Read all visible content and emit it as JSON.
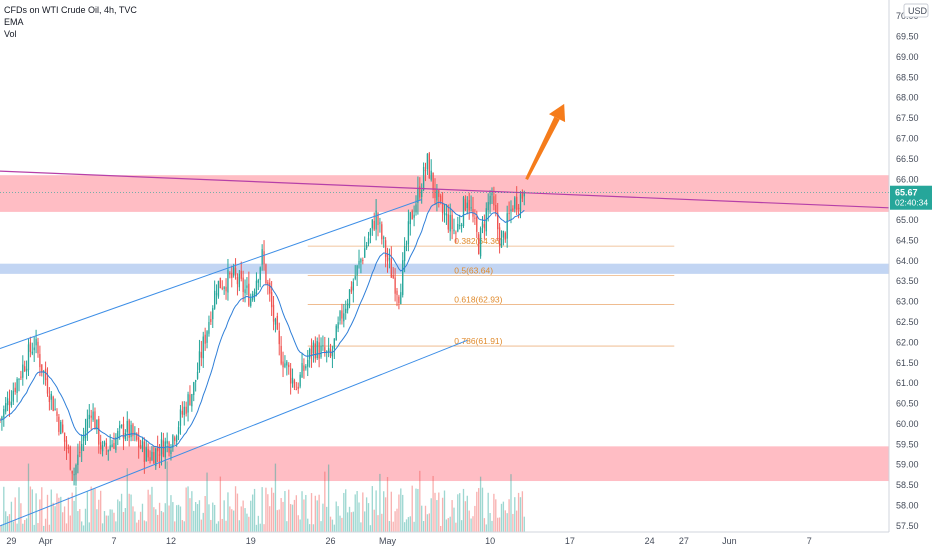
{
  "legend": {
    "title": "CFDs on WTI Crude Oil, 4h, TVC",
    "indicator1": "EMA",
    "indicator2": "Vol"
  },
  "currency": "USD",
  "colors": {
    "up": "#26a69a",
    "down": "#ef5350",
    "ema": "#2f7fd8",
    "channel": "#3d8ee6",
    "resistance": "#ff7b8a",
    "support": "#8fb2ea",
    "trendline": "#b640a8",
    "fib": "#e8a060",
    "arrow": "#f57c1b",
    "price_tag": "#26a69a"
  },
  "price_tag": {
    "price": "65.67",
    "countdown": "02:40:34",
    "value": 65.67
  },
  "chart_data": {
    "type": "candlestick",
    "ylim": [
      57.35,
      70.2
    ],
    "y_ticks": [
      57.5,
      58.0,
      58.5,
      59.0,
      59.5,
      60.0,
      60.5,
      61.0,
      61.5,
      62.0,
      62.5,
      63.0,
      63.5,
      64.0,
      64.5,
      65.0,
      65.5,
      66.0,
      66.5,
      67.0,
      67.5,
      68.0,
      68.5,
      69.0,
      69.5,
      70.0
    ],
    "y_tick_labels": [
      "57.50",
      "58.00",
      "58.50",
      "59.00",
      "59.50",
      "60.00",
      "60.50",
      "61.00",
      "61.50",
      "62.00",
      "62.50",
      "63.00",
      "63.50",
      "64.00",
      "64.50",
      "65.00",
      "65.50",
      "66.00",
      "66.50",
      "67.00",
      "67.50",
      "68.00",
      "68.50",
      "69.00",
      "69.50",
      "70.00"
    ],
    "x_tick_labels": [
      "29",
      "Apr",
      "7",
      "12",
      "19",
      "26",
      "May",
      "10",
      "17",
      "24",
      "27",
      "Jun",
      "7"
    ],
    "x_tick_days": [
      0,
      3,
      9,
      14,
      21,
      28,
      33,
      42,
      49,
      56,
      59,
      63,
      70
    ],
    "x_range_days": [
      -1,
      77
    ],
    "last_day": 45,
    "zones": [
      {
        "name": "resistance",
        "low": 65.2,
        "high": 66.1
      },
      {
        "name": "support",
        "low": 63.68,
        "high": 63.93
      },
      {
        "name": "demand",
        "low": 58.6,
        "high": 59.45
      }
    ],
    "fib_levels": [
      {
        "label": "0.382(64.36)",
        "value": 64.36,
        "start_day": 26
      },
      {
        "label": "0.5(63.64)",
        "value": 63.64,
        "start_day": 26
      },
      {
        "label": "0.618(62.93)",
        "value": 62.93,
        "start_day": 26
      },
      {
        "label": "0.786(61.91)",
        "value": 61.91,
        "start_day": 26
      }
    ],
    "trendline": {
      "d1": -1,
      "p1": 66.2,
      "d2": 77,
      "p2": 65.3
    },
    "channel_upper": {
      "d1": -1,
      "p1": 61.85,
      "d2": 36,
      "p2": 65.5
    },
    "channel_lower": {
      "d1": -1,
      "p1": 57.5,
      "d2": 40,
      "p2": 62.05
    },
    "arrow": {
      "from_day": 45.2,
      "from_price": 66.0,
      "to_day": 48.5,
      "to_price": 67.85
    },
    "pivots": [
      {
        "d": -1,
        "p": 60.1
      },
      {
        "d": 1,
        "p": 61.4
      },
      {
        "d": 2,
        "p": 62.0
      },
      {
        "d": 4,
        "p": 60.2
      },
      {
        "d": 5.5,
        "p": 58.8
      },
      {
        "d": 7,
        "p": 60.4
      },
      {
        "d": 8,
        "p": 59.3
      },
      {
        "d": 10,
        "p": 59.9
      },
      {
        "d": 12,
        "p": 59.2
      },
      {
        "d": 14,
        "p": 59.6
      },
      {
        "d": 16,
        "p": 60.9
      },
      {
        "d": 18,
        "p": 63.4
      },
      {
        "d": 19.5,
        "p": 63.6
      },
      {
        "d": 21,
        "p": 63.1
      },
      {
        "d": 22,
        "p": 64.1
      },
      {
        "d": 23.5,
        "p": 61.8
      },
      {
        "d": 25,
        "p": 60.9
      },
      {
        "d": 26.5,
        "p": 61.9
      },
      {
        "d": 28,
        "p": 61.6
      },
      {
        "d": 29,
        "p": 62.7
      },
      {
        "d": 31,
        "p": 64.3
      },
      {
        "d": 32,
        "p": 65.1
      },
      {
        "d": 33,
        "p": 64.0
      },
      {
        "d": 34,
        "p": 63.2
      },
      {
        "d": 35,
        "p": 65.0
      },
      {
        "d": 36.5,
        "p": 66.4
      },
      {
        "d": 37.5,
        "p": 65.3
      },
      {
        "d": 39,
        "p": 64.7
      },
      {
        "d": 40,
        "p": 65.6
      },
      {
        "d": 41,
        "p": 64.4
      },
      {
        "d": 42,
        "p": 65.6
      },
      {
        "d": 43,
        "p": 64.4
      },
      {
        "d": 44,
        "p": 65.4
      },
      {
        "d": 45,
        "p": 65.67
      }
    ]
  }
}
